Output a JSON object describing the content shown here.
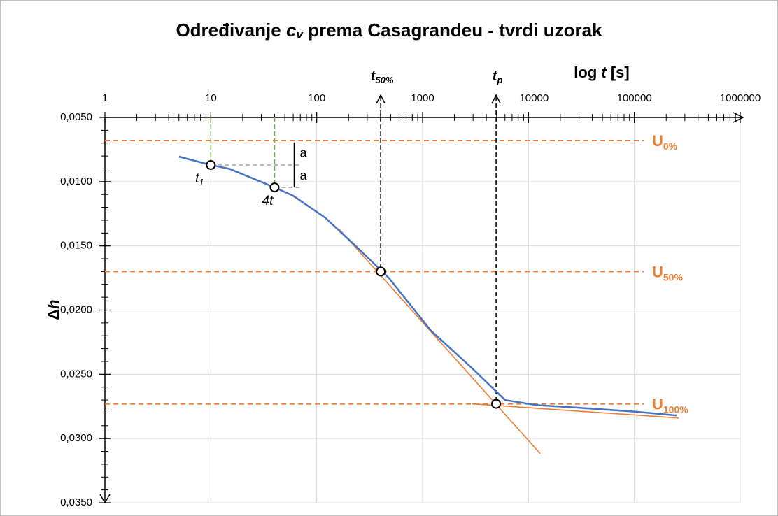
{
  "chart_data": {
    "type": "line",
    "title_parts": [
      "Određivanje ",
      "c",
      "v",
      " prema Casagrandeu - tvrdi uzorak"
    ],
    "x_label_parts": [
      "log ",
      "t",
      " [s]"
    ],
    "y_label_parts": [
      "Δ",
      "h"
    ],
    "xscale": "log",
    "x_axis_position": "top",
    "y_inverted": true,
    "xlim": [
      1,
      1000000
    ],
    "xticks": [
      1,
      10,
      100,
      1000,
      10000,
      100000,
      1000000
    ],
    "x_minor_ticks": true,
    "ylim": [
      0.005,
      0.035
    ],
    "yticks": [
      {
        "value": 0.005,
        "label": "0,0050"
      },
      {
        "value": 0.01,
        "label": "0,0100"
      },
      {
        "value": 0.015,
        "label": "0,0150"
      },
      {
        "value": 0.02,
        "label": "0,0200"
      },
      {
        "value": 0.025,
        "label": "0,0250"
      },
      {
        "value": 0.03,
        "label": "0,0300"
      },
      {
        "value": 0.035,
        "label": "0,0350"
      }
    ],
    "y_minor_divisions": 5,
    "grid": true,
    "series": [
      {
        "color": "#4472c4",
        "x": [
          5,
          10,
          15,
          40,
          60,
          120,
          240,
          480,
          1200,
          3000,
          6000,
          12000,
          30000,
          100000,
          250000
        ],
        "values": [
          0.00805,
          0.0087,
          0.009,
          0.01045,
          0.0111,
          0.0128,
          0.0151,
          0.0175,
          0.0216,
          0.0246,
          0.027,
          0.0274,
          0.0276,
          0.0279,
          0.0282
        ]
      }
    ],
    "tangents": [
      {
        "color": "#ed7d31",
        "x": [
          164,
          12900
        ],
        "values": [
          0.01372,
          0.03117
        ]
      },
      {
        "color": "#ed7d31",
        "x": [
          2950,
          263000
        ],
        "values": [
          0.0273,
          0.0284
        ]
      }
    ],
    "level_color": "#ed7d31",
    "levels": [
      {
        "main": "U",
        "sub": "0%",
        "value": 0.0068
      },
      {
        "main": "U",
        "sub": "50%",
        "value": 0.017
      },
      {
        "main": "U",
        "sub": "100%",
        "value": 0.0273
      }
    ],
    "times": [
      {
        "main": "t",
        "sub": "50%",
        "x": 402,
        "value": 0.017
      },
      {
        "main": "t",
        "sub": "p",
        "x": 4950,
        "value": 0.0273
      }
    ],
    "guide_color": "#70ad47",
    "points": [
      {
        "main": "t",
        "sub": "1",
        "x": 10,
        "value": 0.0087
      },
      {
        "main": "4t",
        "x": 40,
        "value": 0.01045
      }
    ],
    "offset_labels": [
      "a",
      "a"
    ]
  }
}
